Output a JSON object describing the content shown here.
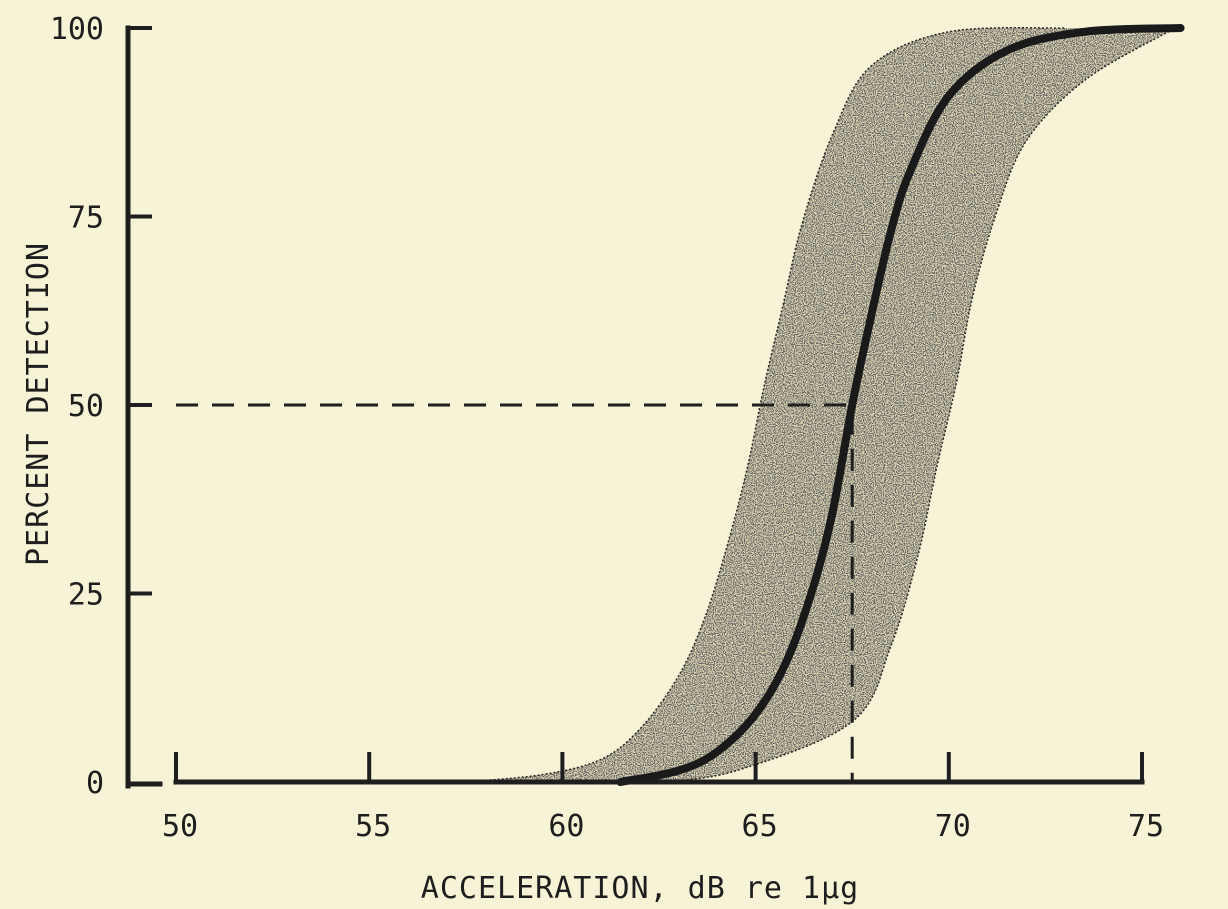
{
  "chart_data": {
    "type": "line",
    "title": "",
    "xlabel": "ACCELERATION, dB re 1μg",
    "ylabel": "PERCENT DETECTION",
    "xlim": [
      50,
      75
    ],
    "ylim": [
      0,
      100
    ],
    "x_ticks": [
      50,
      55,
      60,
      65,
      70,
      75
    ],
    "y_ticks": [
      0,
      25,
      50,
      75,
      100
    ],
    "grid": false,
    "legend": "none",
    "series": [
      {
        "role": "median",
        "x": [
          61.5,
          63.0,
          64.0,
          65.0,
          65.8,
          66.5,
          67.0,
          67.5,
          68.0,
          68.5,
          69.0,
          70.0,
          71.5,
          73.5,
          76.0
        ],
        "y": [
          0,
          1.5,
          4,
          9,
          16,
          26,
          36,
          50,
          62,
          73,
          81,
          91,
          97,
          99.5,
          100
        ]
      },
      {
        "role": "band-left",
        "x": [
          57.5,
          59.5,
          61.0,
          62.0,
          63.0,
          63.7,
          64.3,
          64.8,
          65.2,
          65.7,
          66.2,
          67.0,
          68.0,
          70.0,
          73.0
        ],
        "y": [
          0,
          1,
          3,
          7,
          14,
          22,
          32,
          42,
          52,
          63,
          74,
          86,
          95,
          99.5,
          100
        ]
      },
      {
        "role": "band-right",
        "x": [
          62.5,
          64.5,
          67.5,
          68.5,
          69.2,
          69.7,
          70.2,
          70.6,
          71.2,
          72.0,
          73.5,
          75.5,
          76.0
        ],
        "y": [
          0,
          1.5,
          8,
          18,
          30,
          42,
          53,
          64,
          75,
          85,
          93,
          99,
          100
        ]
      },
      {
        "role": "50-percent-reference",
        "x": [
          50,
          67.5,
          67.5
        ],
        "y": [
          50,
          50,
          0
        ]
      }
    ],
    "annotations": [
      {
        "type": "dashed-reference",
        "at_x": 67.5,
        "at_y": 50
      }
    ]
  }
}
